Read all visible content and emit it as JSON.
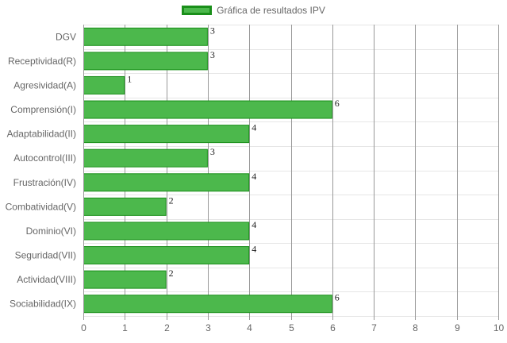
{
  "chart_data": {
    "type": "bar",
    "orientation": "horizontal",
    "legend": {
      "label": "Gráfica de resultados IPV",
      "position": "top"
    },
    "categories": [
      "DGV",
      "Receptividad(R)",
      "Agresividad(A)",
      "Comprensión(I)",
      "Adaptabilidad(II)",
      "Autocontrol(III)",
      "Frustración(IV)",
      "Combatividad(V)",
      "Dominio(VI)",
      "Seguridad(VII)",
      "Actividad(VIII)",
      "Sociabilidad(IX)"
    ],
    "series": [
      {
        "name": "Gráfica de resultados IPV",
        "values": [
          3,
          3,
          1,
          6,
          4,
          3,
          4,
          2,
          4,
          4,
          2,
          6
        ]
      }
    ],
    "xlim": [
      0,
      10
    ],
    "x_ticks": [
      0,
      1,
      2,
      3,
      4,
      5,
      6,
      7,
      8,
      9,
      10
    ],
    "grid": true,
    "data_labels": true,
    "colors": {
      "bar_fill": "#4cb84c",
      "bar_border": "#1a8f1a",
      "grid_vertical": "#999999",
      "grid_horizontal": "#e6e6e6",
      "text": "#666666"
    }
  }
}
